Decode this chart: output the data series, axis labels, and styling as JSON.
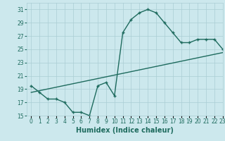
{
  "xlabel": "Humidex (Indice chaleur)",
  "background_color": "#cce8ed",
  "grid_color": "#aacdd4",
  "line_color": "#1e6b5e",
  "x_hours": [
    0,
    1,
    2,
    3,
    4,
    5,
    6,
    7,
    8,
    9,
    10,
    11,
    12,
    13,
    14,
    15,
    16,
    17,
    18,
    19,
    20,
    21,
    22,
    23
  ],
  "humidex_curve": [
    19.5,
    18.5,
    17.5,
    17.5,
    17.0,
    15.5,
    15.5,
    15.0,
    19.5,
    20.0,
    18.0,
    27.5,
    29.5,
    30.5,
    31.0,
    30.5,
    29.0,
    27.5,
    26.0,
    26.0,
    26.5,
    26.5,
    26.5,
    25.0
  ],
  "linear_line_x": [
    0,
    23
  ],
  "linear_line_y": [
    18.5,
    24.5
  ],
  "ylim": [
    15,
    32
  ],
  "yticks": [
    15,
    17,
    19,
    21,
    23,
    25,
    27,
    29,
    31
  ],
  "xlim": [
    -0.5,
    23
  ],
  "xlabel_fontsize": 7,
  "tick_fontsize": 5.5,
  "linewidth": 1.0
}
